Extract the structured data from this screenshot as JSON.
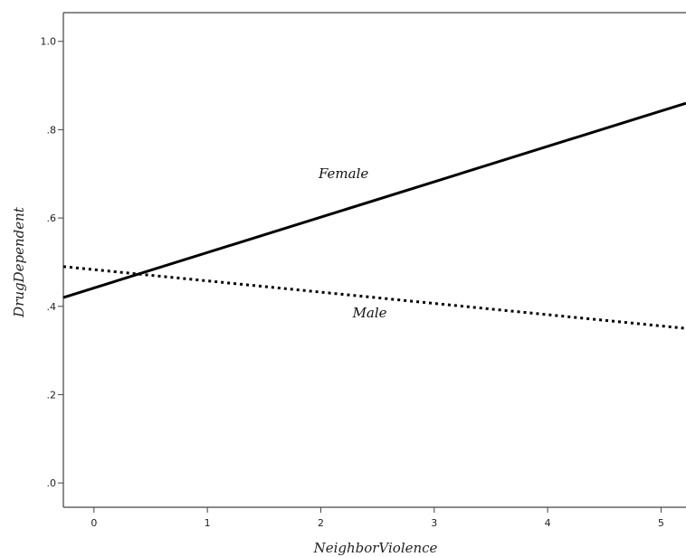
{
  "chart_data": {
    "type": "line",
    "title": "",
    "xlabel": "NeighborViolence",
    "ylabel": "DrugDependent",
    "xlim": [
      -0.27,
      5.22
    ],
    "ylim": [
      -0.055,
      1.065
    ],
    "x_ticks": [
      0,
      1,
      2,
      3,
      4,
      5
    ],
    "x_tick_labels": [
      "0",
      "1",
      "2",
      "3",
      "4",
      "5"
    ],
    "y_ticks": [
      0.0,
      0.2,
      0.4,
      0.6,
      0.8,
      1.0
    ],
    "y_tick_labels": [
      ".0",
      ".2",
      ".4",
      ".6",
      ".8",
      "1.0"
    ],
    "grid": false,
    "legend": "none",
    "series": [
      {
        "name": "Female",
        "style": "solid",
        "color": "#000000",
        "x": [
          -0.27,
          5.22
        ],
        "y": [
          0.42,
          0.86
        ],
        "label_at": [
          1.98,
          0.69
        ]
      },
      {
        "name": "Male",
        "style": "dotted",
        "color": "#000000",
        "x": [
          -0.27,
          5.22
        ],
        "y": [
          0.49,
          0.35
        ],
        "label_at": [
          2.28,
          0.375
        ]
      }
    ]
  }
}
